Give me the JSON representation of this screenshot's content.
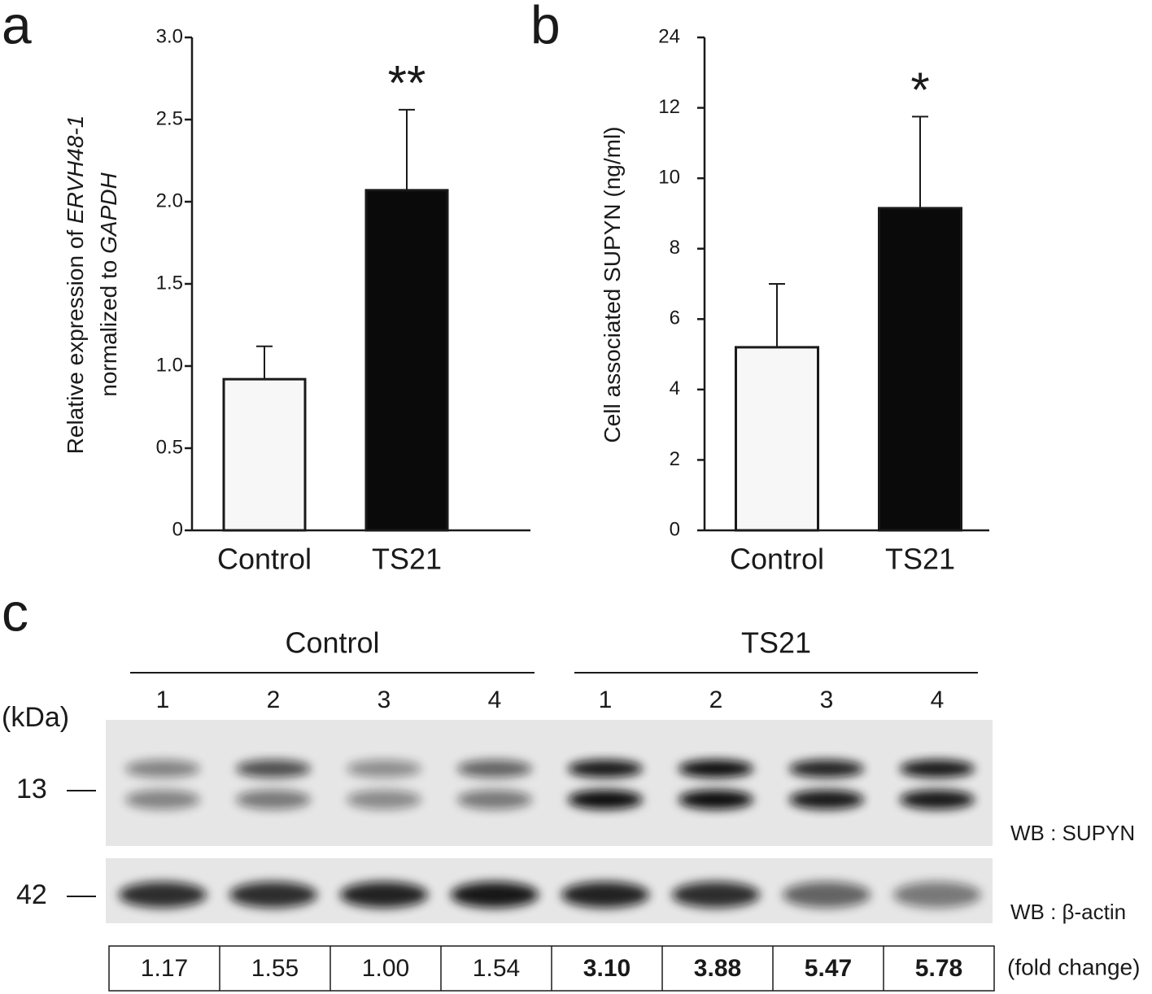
{
  "chart_data": [
    {
      "type": "bar",
      "panel_label": "a",
      "ylabel": [
        [
          {
            "text": "Relative expression of "
          },
          {
            "text": "ERVH48-1",
            "italic": true
          }
        ],
        [
          {
            "text": "normalized to "
          },
          {
            "text": "GAPDH",
            "italic": true
          }
        ]
      ],
      "categories": [
        "Control",
        "TS21"
      ],
      "values": [
        0.92,
        2.07
      ],
      "errors": [
        0.2,
        0.49
      ],
      "bar_colors": [
        "#f7f7f7",
        "#0a0a0a"
      ],
      "annotations": [
        null,
        "**"
      ],
      "ylim": [
        0,
        3
      ],
      "yticks": [
        0,
        0.5,
        {
          "value": 1,
          "label": "1.0"
        },
        1.5,
        {
          "value": 2,
          "label": "2.0"
        },
        2.5,
        {
          "value": 3,
          "label": "3.0"
        }
      ]
    },
    {
      "type": "bar",
      "panel_label": "b",
      "ylabel": [
        [
          {
            "text": "Cell associated SUPYN (ng/ml)"
          }
        ]
      ],
      "categories": [
        "Control",
        "TS21"
      ],
      "values": [
        5.2,
        9.15
      ],
      "errors": [
        1.8,
        2.6
      ],
      "bar_colors": [
        "#f7f7f7",
        "#0a0a0a"
      ],
      "annotations": [
        null,
        "*"
      ],
      "ylim": [
        0,
        24
      ],
      "yticks": [
        0,
        2,
        4,
        6,
        8,
        10,
        12,
        24
      ]
    }
  ],
  "blot": {
    "panel_label": "c",
    "kda_label": "(kDa)",
    "groups": [
      {
        "name": "Control",
        "lanes": [
          "1",
          "2",
          "3",
          "4"
        ],
        "bold": false
      },
      {
        "name": "TS21",
        "lanes": [
          "1",
          "2",
          "3",
          "4"
        ],
        "bold": true
      }
    ],
    "markers": [
      "13",
      "42"
    ],
    "blots": [
      "WB : SUPYN",
      "WB : β-actin"
    ],
    "fold_change": {
      "label": "(fold change)",
      "values": [
        [
          "1.17",
          "1.55",
          "1.00",
          "1.54"
        ],
        [
          "3.10",
          "3.88",
          "5.47",
          "5.78"
        ]
      ]
    }
  }
}
